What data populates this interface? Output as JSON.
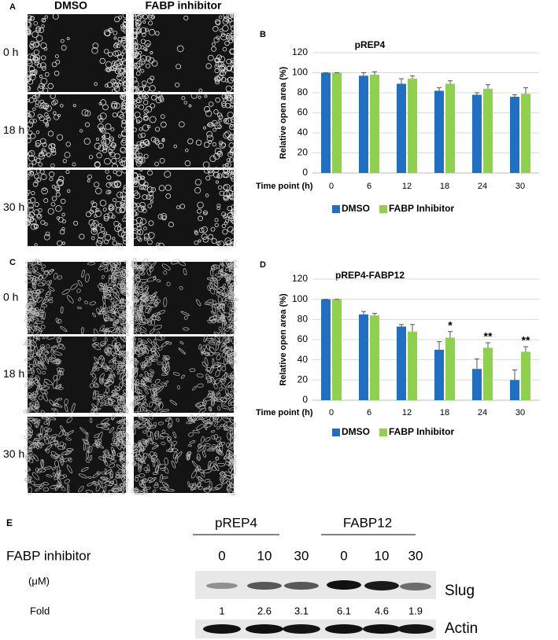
{
  "panel_a": {
    "label": "A",
    "columns": [
      "DMSO",
      "FABP inhibitor"
    ],
    "rows": [
      "0 h",
      "18 h",
      "30 h"
    ]
  },
  "panel_c": {
    "label": "C",
    "rows": [
      "0 h",
      "18 h",
      "30 h"
    ]
  },
  "chart_data": [
    {
      "panel_label": "B",
      "type": "bar",
      "title": "pREP4",
      "y_label": "Relative open area (%)",
      "x_label": "Time point (h)",
      "categories": [
        "0",
        "6",
        "12",
        "18",
        "24",
        "30"
      ],
      "series": [
        {
          "name": "DMSO",
          "color": "#1f6fc4",
          "values": [
            100,
            97,
            89,
            82,
            78,
            76
          ],
          "errors": [
            0,
            3,
            5,
            3,
            2,
            2
          ]
        },
        {
          "name": "FABP Inhibitor",
          "color": "#8fd14f",
          "values": [
            100,
            98,
            94,
            89,
            84,
            79
          ],
          "errors": [
            0,
            3,
            3,
            3,
            4,
            6
          ]
        }
      ],
      "ylim": [
        0,
        120
      ],
      "yticks": [
        0,
        20,
        40,
        60,
        80,
        100,
        120
      ],
      "grid": true,
      "legend": "bottom"
    },
    {
      "panel_label": "D",
      "type": "bar",
      "title": "pREP4-FABP12",
      "y_label": "Relative open area (%)",
      "x_label": "Time point (h)",
      "categories": [
        "0",
        "6",
        "12",
        "18",
        "24",
        "30"
      ],
      "series": [
        {
          "name": "DMSO",
          "color": "#1f6fc4",
          "values": [
            100,
            85,
            73,
            50,
            31,
            20
          ],
          "errors": [
            0,
            3,
            2,
            8,
            10,
            10
          ]
        },
        {
          "name": "FABP Inhibitor",
          "color": "#8fd14f",
          "values": [
            100,
            84,
            68,
            62,
            52,
            48
          ],
          "errors": [
            0,
            2,
            7,
            6,
            5,
            5
          ]
        }
      ],
      "significance": [
        null,
        null,
        null,
        "*",
        "**",
        "**"
      ],
      "ylim": [
        0,
        120
      ],
      "yticks": [
        0,
        20,
        40,
        60,
        80,
        100,
        120
      ],
      "grid": true,
      "legend": "bottom"
    }
  ],
  "panel_e": {
    "label": "E",
    "groups": [
      "pREP4",
      "FABP12"
    ],
    "treatment_label": "FABP inhibitor",
    "unit": "(μM)",
    "concentrations": [
      "0",
      "10",
      "30",
      "0",
      "10",
      "30"
    ],
    "slug_label": "Slug",
    "fold_label": "Fold",
    "folds": [
      1,
      2.6,
      3.1,
      6.1,
      4.6,
      1.9
    ],
    "actin_label": "Actin"
  }
}
